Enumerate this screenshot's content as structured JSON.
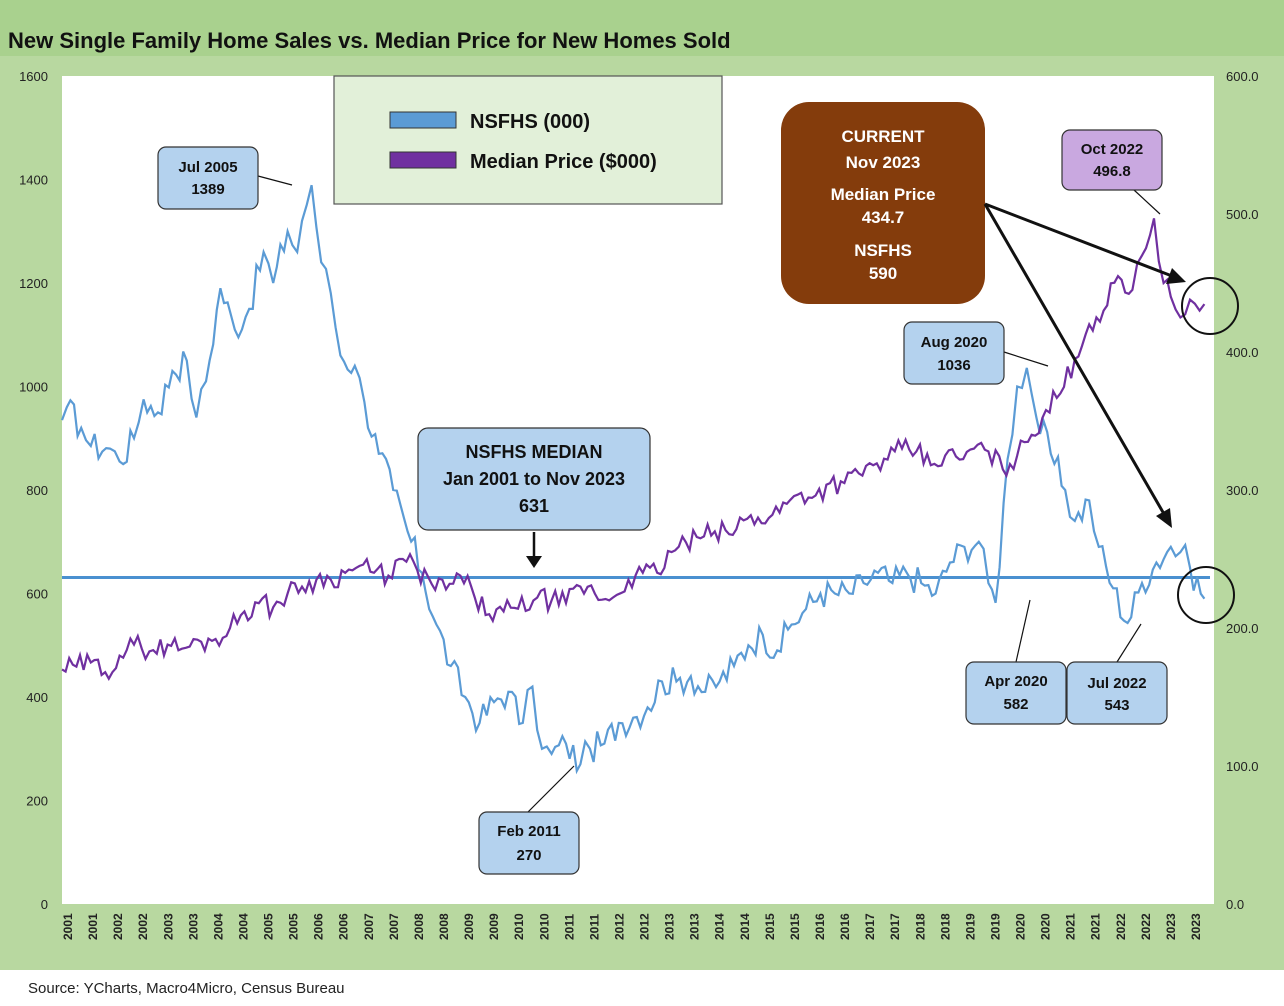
{
  "title": "New Single Family Home Sales vs. Median Price for New Homes Sold",
  "source": "Source: YCharts, Macro4Micro, Census Bureau",
  "colors": {
    "nsfhs": "#5b9bd5",
    "median_price": "#7030a0",
    "median_line": "#4a90d0",
    "panel_bg": "#b8d8a0",
    "callout_fill": "#b4d2ee",
    "callout_purple": "#c9a8e0",
    "current_box": "#843c0c",
    "legend_bg": "#e2f0d9"
  },
  "legend": {
    "items": [
      "NSFHS (000)",
      "Median Price ($000)"
    ]
  },
  "callouts": {
    "jul2005": {
      "label": "Jul 2005",
      "value": "1389"
    },
    "feb2011": {
      "label": "Feb 2011",
      "value": "270"
    },
    "aug2020": {
      "label": "Aug 2020",
      "value": "1036"
    },
    "apr2020": {
      "label": "Apr 2020",
      "value": "582"
    },
    "jul2022": {
      "label": "Jul 2022",
      "value": "543"
    },
    "oct2022": {
      "label": "Oct 2022",
      "value": "496.8"
    },
    "median": {
      "line1": "NSFHS MEDIAN",
      "line2": "Jan 2001 to Nov 2023",
      "line3": "631"
    },
    "current": {
      "line1": "CURRENT",
      "line2": "Nov 2023",
      "line3": "Median Price",
      "line4": "434.7",
      "line5": "NSFHS",
      "line6": "590"
    }
  },
  "chart_data": {
    "type": "line",
    "title": "New Single Family Home Sales vs. Median Price for New Homes Sold",
    "x_tick_labels": [
      "2001",
      "2001",
      "2002",
      "2002",
      "2003",
      "2003",
      "2004",
      "2004",
      "2005",
      "2005",
      "2006",
      "2006",
      "2007",
      "2007",
      "2008",
      "2008",
      "2009",
      "2009",
      "2010",
      "2010",
      "2011",
      "2011",
      "2012",
      "2012",
      "2013",
      "2013",
      "2014",
      "2014",
      "2015",
      "2015",
      "2016",
      "2016",
      "2017",
      "2017",
      "2018",
      "2018",
      "2019",
      "2019",
      "2020",
      "2020",
      "2021",
      "2021",
      "2022",
      "2022",
      "2023",
      "2023"
    ],
    "y_left": {
      "min": 0,
      "max": 1600,
      "ticks": [
        "0",
        "200",
        "400",
        "600",
        "800",
        "1000",
        "1200",
        "1400",
        "1600"
      ]
    },
    "y_right": {
      "min": 0,
      "max": 600,
      "ticks": [
        "0.0",
        "100.0",
        "200.0",
        "300.0",
        "400.0",
        "500.0",
        "600.0"
      ]
    },
    "median_nsfhs": 631,
    "series": [
      {
        "name": "NSFHS (000)",
        "axis": "left",
        "anchors": [
          [
            2001.0,
            935
          ],
          [
            2001.1,
            960
          ],
          [
            2001.4,
            920
          ],
          [
            2001.6,
            885
          ],
          [
            2002.0,
            880
          ],
          [
            2002.2,
            855
          ],
          [
            2002.5,
            900
          ],
          [
            2002.7,
            975
          ],
          [
            2003.0,
            950
          ],
          [
            2003.3,
            1030
          ],
          [
            2003.6,
            1050
          ],
          [
            2003.8,
            940
          ],
          [
            2004.0,
            1010
          ],
          [
            2004.3,
            1190
          ],
          [
            2004.6,
            1110
          ],
          [
            2004.9,
            1150
          ],
          [
            2005.2,
            1260
          ],
          [
            2005.4,
            1200
          ],
          [
            2005.7,
            1300
          ],
          [
            2005.9,
            1260
          ],
          [
            2006.0,
            1320
          ],
          [
            2006.2,
            1389
          ],
          [
            2006.4,
            1240
          ],
          [
            2006.6,
            1180
          ],
          [
            2006.8,
            1060
          ],
          [
            2007.1,
            1040
          ],
          [
            2007.3,
            970
          ],
          [
            2007.6,
            870
          ],
          [
            2007.9,
            800
          ],
          [
            2008.2,
            720
          ],
          [
            2008.5,
            640
          ],
          [
            2008.8,
            540
          ],
          [
            2009.1,
            460
          ],
          [
            2009.4,
            400
          ],
          [
            2009.7,
            350
          ],
          [
            2010.0,
            390
          ],
          [
            2010.3,
            410
          ],
          [
            2010.6,
            350
          ],
          [
            2010.8,
            420
          ],
          [
            2011.0,
            300
          ],
          [
            2011.2,
            290
          ],
          [
            2011.5,
            310
          ],
          [
            2011.8,
            270
          ],
          [
            2012.0,
            300
          ],
          [
            2012.3,
            310
          ],
          [
            2012.6,
            350
          ],
          [
            2012.9,
            360
          ],
          [
            2013.2,
            380
          ],
          [
            2013.5,
            430
          ],
          [
            2013.8,
            430
          ],
          [
            2014.1,
            440
          ],
          [
            2014.4,
            410
          ],
          [
            2014.7,
            430
          ],
          [
            2015.0,
            460
          ],
          [
            2015.3,
            500
          ],
          [
            2015.6,
            520
          ],
          [
            2015.9,
            490
          ],
          [
            2016.2,
            540
          ],
          [
            2016.5,
            570
          ],
          [
            2016.8,
            600
          ],
          [
            2017.1,
            600
          ],
          [
            2017.4,
            600
          ],
          [
            2017.7,
            620
          ],
          [
            2018.0,
            640
          ],
          [
            2018.3,
            620
          ],
          [
            2018.6,
            640
          ],
          [
            2018.9,
            620
          ],
          [
            2019.2,
            600
          ],
          [
            2019.5,
            660
          ],
          [
            2019.8,
            690
          ],
          [
            2020.1,
            700
          ],
          [
            2020.3,
            620
          ],
          [
            2020.45,
            582
          ],
          [
            2020.7,
            860
          ],
          [
            2020.9,
            1000
          ],
          [
            2021.1,
            1036
          ],
          [
            2021.3,
            940
          ],
          [
            2021.6,
            870
          ],
          [
            2021.9,
            800
          ],
          [
            2022.1,
            740
          ],
          [
            2022.4,
            780
          ],
          [
            2022.6,
            690
          ],
          [
            2022.9,
            610
          ],
          [
            2023.2,
            543
          ],
          [
            2023.5,
            620
          ],
          [
            2023.8,
            660
          ],
          [
            2024.1,
            690
          ],
          [
            2024.3,
            680
          ],
          [
            2024.5,
            650
          ],
          [
            2024.8,
            590
          ]
        ]
      },
      {
        "name": "Median Price ($000)",
        "axis": "right",
        "anchors": [
          [
            2001.0,
            170
          ],
          [
            2001.3,
            172
          ],
          [
            2001.6,
            175
          ],
          [
            2001.9,
            168
          ],
          [
            2002.2,
            180
          ],
          [
            2002.5,
            188
          ],
          [
            2002.9,
            184
          ],
          [
            2003.2,
            188
          ],
          [
            2003.5,
            185
          ],
          [
            2003.9,
            190
          ],
          [
            2004.2,
            192
          ],
          [
            2004.5,
            200
          ],
          [
            2004.8,
            212
          ],
          [
            2005.1,
            218
          ],
          [
            2005.4,
            215
          ],
          [
            2005.7,
            225
          ],
          [
            2006.0,
            230
          ],
          [
            2006.3,
            235
          ],
          [
            2006.6,
            235
          ],
          [
            2006.9,
            240
          ],
          [
            2007.2,
            245
          ],
          [
            2007.5,
            240
          ],
          [
            2007.8,
            238
          ],
          [
            2008.1,
            250
          ],
          [
            2008.4,
            242
          ],
          [
            2008.7,
            232
          ],
          [
            2009.0,
            228
          ],
          [
            2009.3,
            238
          ],
          [
            2009.6,
            222
          ],
          [
            2009.9,
            210
          ],
          [
            2010.2,
            212
          ],
          [
            2010.5,
            214
          ],
          [
            2010.9,
            222
          ],
          [
            2011.2,
            220
          ],
          [
            2011.5,
            218
          ],
          [
            2011.8,
            230
          ],
          [
            2012.1,
            225
          ],
          [
            2012.4,
            220
          ],
          [
            2012.8,
            235
          ],
          [
            2013.1,
            240
          ],
          [
            2013.4,
            240
          ],
          [
            2013.7,
            255
          ],
          [
            2014.0,
            262
          ],
          [
            2014.3,
            265
          ],
          [
            2014.6,
            270
          ],
          [
            2014.9,
            268
          ],
          [
            2015.2,
            278
          ],
          [
            2015.5,
            280
          ],
          [
            2015.8,
            282
          ],
          [
            2016.1,
            290
          ],
          [
            2016.4,
            298
          ],
          [
            2016.7,
            296
          ],
          [
            2017.0,
            305
          ],
          [
            2017.3,
            305
          ],
          [
            2017.6,
            312
          ],
          [
            2017.9,
            318
          ],
          [
            2018.2,
            322
          ],
          [
            2018.5,
            330
          ],
          [
            2018.8,
            328
          ],
          [
            2019.1,
            318
          ],
          [
            2019.4,
            325
          ],
          [
            2019.7,
            322
          ],
          [
            2020.0,
            330
          ],
          [
            2020.3,
            328
          ],
          [
            2020.6,
            315
          ],
          [
            2020.9,
            325
          ],
          [
            2021.2,
            340
          ],
          [
            2021.5,
            358
          ],
          [
            2021.8,
            370
          ],
          [
            2022.1,
            395
          ],
          [
            2022.4,
            420
          ],
          [
            2022.7,
            430
          ],
          [
            2023.0,
            455
          ],
          [
            2023.3,
            445
          ],
          [
            2023.5,
            470
          ],
          [
            2023.75,
            496.8
          ],
          [
            2023.95,
            450
          ],
          [
            2024.1,
            440
          ],
          [
            2024.3,
            425
          ],
          [
            2024.5,
            438
          ],
          [
            2024.7,
            430
          ],
          [
            2024.8,
            434.7
          ]
        ]
      }
    ]
  }
}
